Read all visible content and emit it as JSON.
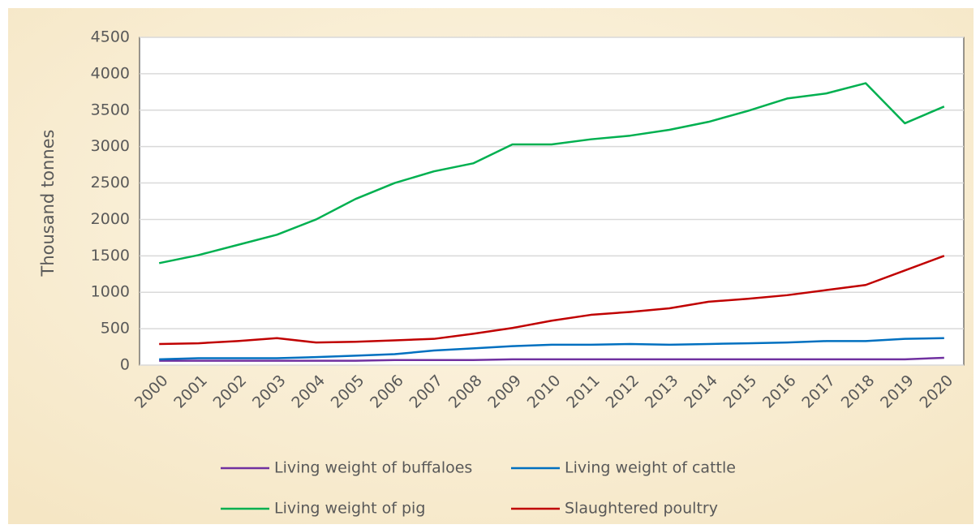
{
  "chart_data": {
    "type": "line",
    "y_label": "Thousand tonnes",
    "categories": [
      "2000",
      "2001",
      "2002",
      "2003",
      "2004",
      "2005",
      "2006",
      "2007",
      "2008",
      "2009",
      "2010",
      "2011",
      "2012",
      "2013",
      "2014",
      "2015",
      "2016",
      "2017",
      "2018",
      "2019",
      "2020"
    ],
    "series": [
      {
        "name": "Living weight of buffaloes",
        "color": "#7030a0",
        "values": [
          60,
          60,
          60,
          60,
          60,
          60,
          70,
          70,
          70,
          80,
          80,
          80,
          80,
          80,
          80,
          80,
          80,
          80,
          80,
          80,
          100
        ]
      },
      {
        "name": "Living weight of cattle",
        "color": "#0070c0",
        "values": [
          80,
          95,
          95,
          95,
          110,
          130,
          150,
          200,
          230,
          260,
          280,
          280,
          290,
          280,
          290,
          300,
          310,
          330,
          330,
          360,
          370
        ]
      },
      {
        "name": "Living weight of pig",
        "color": "#00b050",
        "values": [
          1400,
          1510,
          1650,
          1790,
          2000,
          2280,
          2500,
          2660,
          2770,
          3030,
          3030,
          3100,
          3150,
          3230,
          3340,
          3490,
          3660,
          3730,
          3870,
          3320,
          3550
        ]
      },
      {
        "name": "Slaughtered poultry",
        "color": "#c00000",
        "values": [
          290,
          300,
          330,
          370,
          310,
          320,
          340,
          360,
          430,
          510,
          610,
          690,
          730,
          780,
          870,
          910,
          960,
          1030,
          1100,
          1300,
          1500
        ]
      }
    ],
    "ylim": [
      0,
      4500
    ],
    "yticks": [
      0,
      500,
      1000,
      1500,
      2000,
      2500,
      3000,
      3500,
      4000,
      4500
    ],
    "grid": true
  }
}
